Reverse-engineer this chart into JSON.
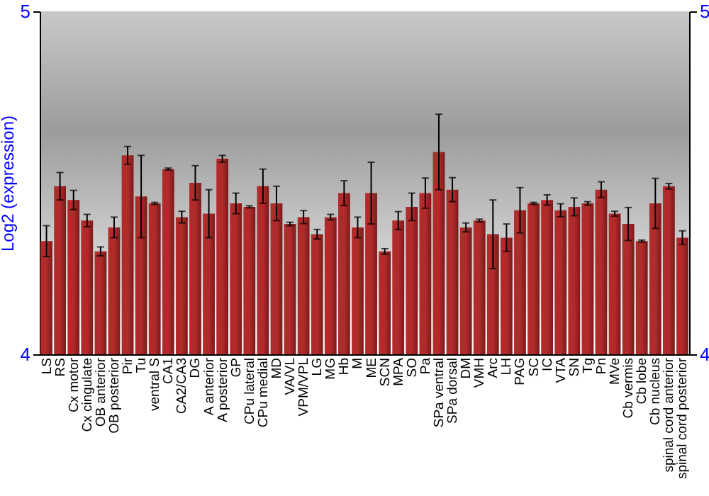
{
  "chart_data": {
    "type": "bar",
    "ylabel": "Log2 (expression)",
    "categories": [
      "LS",
      "RS",
      "Cx motor",
      "Cx cingulate",
      "OB anterior",
      "OB posterior",
      "Pir",
      "Tu",
      "ventral S",
      "CA1",
      "CA2/CA3",
      "DG",
      "A anterior",
      "A posterior",
      "GP",
      "CPu lateral",
      "CPu medial",
      "MD",
      "VA/VL",
      "VPM/VPL",
      "LG",
      "MG",
      "Hb",
      "M",
      "ME",
      "SCN",
      "MPA",
      "SO",
      "Pa",
      "SPa ventral",
      "SPa dorsal",
      "DM",
      "VMH",
      "Arc",
      "LH",
      "PAG",
      "SC",
      "IC",
      "VTA",
      "SN",
      "Tg",
      "Pn",
      "MVe",
      "Cb vermis",
      "Cb lobe",
      "Cb nucleus",
      "spinal cord anterior",
      "spinal cord posterior"
    ],
    "values": [
      4.33,
      4.49,
      4.45,
      4.39,
      4.3,
      4.37,
      4.58,
      4.46,
      4.44,
      4.54,
      4.4,
      4.5,
      4.41,
      4.57,
      4.44,
      4.43,
      4.49,
      4.44,
      4.38,
      4.4,
      4.35,
      4.4,
      4.47,
      4.37,
      4.47,
      4.3,
      4.39,
      4.43,
      4.47,
      4.59,
      4.48,
      4.37,
      4.39,
      4.35,
      4.34,
      4.42,
      4.44,
      4.45,
      4.42,
      4.43,
      4.44,
      4.48,
      4.41,
      4.38,
      4.33,
      4.44,
      4.49,
      4.34
    ],
    "errors": [
      0.045,
      0.04,
      0.028,
      0.018,
      0.013,
      0.03,
      0.026,
      0.12,
      0.003,
      0.003,
      0.017,
      0.05,
      0.07,
      0.01,
      0.03,
      0.003,
      0.05,
      0.05,
      0.005,
      0.019,
      0.014,
      0.008,
      0.036,
      0.03,
      0.09,
      0.008,
      0.026,
      0.04,
      0.044,
      0.11,
      0.035,
      0.013,
      0.004,
      0.1,
      0.04,
      0.066,
      0.003,
      0.015,
      0.019,
      0.026,
      0.005,
      0.023,
      0.007,
      0.048,
      0.003,
      0.073,
      0.008,
      0.02
    ],
    "color": "#b22b2b",
    "ylim": [
      4,
      5
    ],
    "yticks": [
      4,
      5
    ],
    "y2lim": [
      4,
      5
    ],
    "y2ticks": [
      4,
      5
    ],
    "grid": false
  }
}
